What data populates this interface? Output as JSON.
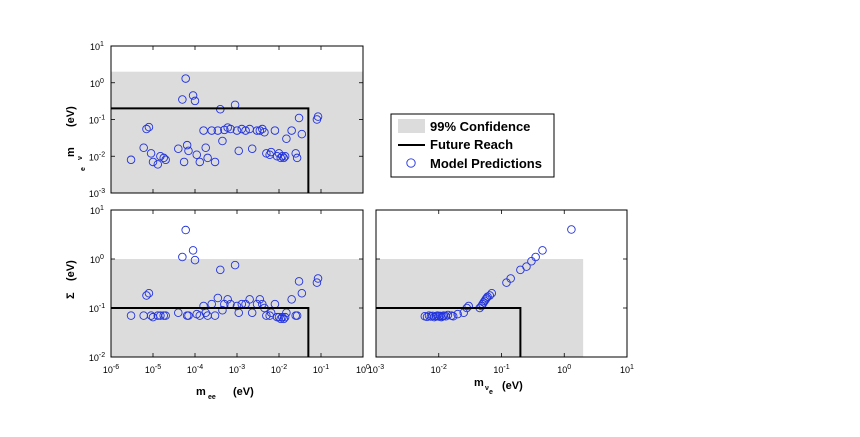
{
  "legend": {
    "confidence_label": "99% Confidence",
    "reach_label": "Future Reach",
    "model_label": "Model Predictions"
  },
  "colors": {
    "confidence": "#dcdcdc",
    "reach": "#000000",
    "model": "#2233dd"
  },
  "chart_data": [
    {
      "type": "scatter",
      "panel": "top-left",
      "xscale": "log",
      "yscale": "log",
      "xlim": [
        1e-06,
        1
      ],
      "ylim": [
        0.001,
        10
      ],
      "xlabel": "",
      "ylabel_main": "m",
      "ylabel_sub": "ν e",
      "ylabel_unit": "(eV)",
      "y_ticks": [
        "10-3",
        "10-2",
        "10-1",
        "100",
        "101"
      ],
      "x_ticks": [],
      "confidence_region": {
        "x_max": 1,
        "y_max": 2
      },
      "future_reach": {
        "x": 0.05,
        "y": 0.2
      },
      "points": [
        [
          3e-06,
          0.008
        ],
        [
          6e-06,
          0.017
        ],
        [
          7e-06,
          0.055
        ],
        [
          8e-06,
          0.062
        ],
        [
          9e-06,
          0.012
        ],
        [
          1e-05,
          0.007
        ],
        [
          1.3e-05,
          0.006
        ],
        [
          1.5e-05,
          0.01
        ],
        [
          1.8e-05,
          0.009
        ],
        [
          2e-05,
          0.008
        ],
        [
          4e-05,
          0.016
        ],
        [
          5e-05,
          0.35
        ],
        [
          5.5e-05,
          0.007
        ],
        [
          6e-05,
          1.3
        ],
        [
          6.5e-05,
          0.02
        ],
        [
          7e-05,
          0.014
        ],
        [
          9e-05,
          0.45
        ],
        [
          0.0001,
          0.32
        ],
        [
          0.00011,
          0.011
        ],
        [
          0.00013,
          0.007
        ],
        [
          0.00016,
          0.05
        ],
        [
          0.00018,
          0.017
        ],
        [
          0.0002,
          0.009
        ],
        [
          0.00025,
          0.05
        ],
        [
          0.0003,
          0.007
        ],
        [
          0.00035,
          0.05
        ],
        [
          0.0004,
          0.19
        ],
        [
          0.00045,
          0.026
        ],
        [
          0.0005,
          0.052
        ],
        [
          0.0006,
          0.06
        ],
        [
          0.0007,
          0.055
        ],
        [
          0.0009,
          0.25
        ],
        [
          0.001,
          0.05
        ],
        [
          0.0011,
          0.014
        ],
        [
          0.0013,
          0.055
        ],
        [
          0.0016,
          0.05
        ],
        [
          0.002,
          0.055
        ],
        [
          0.0023,
          0.016
        ],
        [
          0.003,
          0.05
        ],
        [
          0.0035,
          0.05
        ],
        [
          0.004,
          0.055
        ],
        [
          0.0045,
          0.045
        ],
        [
          0.005,
          0.012
        ],
        [
          0.006,
          0.011
        ],
        [
          0.0065,
          0.013
        ],
        [
          0.008,
          0.05
        ],
        [
          0.009,
          0.01
        ],
        [
          0.01,
          0.012
        ],
        [
          0.011,
          0.009
        ],
        [
          0.012,
          0.01
        ],
        [
          0.013,
          0.009
        ],
        [
          0.014,
          0.01
        ],
        [
          0.015,
          0.03
        ],
        [
          0.02,
          0.05
        ],
        [
          0.025,
          0.012
        ],
        [
          0.027,
          0.009
        ],
        [
          0.03,
          0.11
        ],
        [
          0.035,
          0.04
        ],
        [
          0.08,
          0.1
        ],
        [
          0.085,
          0.12
        ]
      ]
    },
    {
      "type": "scatter",
      "panel": "bottom-left",
      "xscale": "log",
      "yscale": "log",
      "xlim": [
        1e-06,
        1
      ],
      "ylim": [
        0.01,
        10
      ],
      "xlabel_main": "m",
      "xlabel_sub": "ee",
      "xlabel_unit": "(eV)",
      "ylabel_main": "Σ",
      "ylabel_unit": "(eV)",
      "y_ticks": [
        "10-2",
        "10-1",
        "100",
        "101"
      ],
      "x_ticks": [
        "10-6",
        "10-5",
        "10-4",
        "10-3",
        "10-2",
        "10-1",
        "100"
      ],
      "confidence_region": {
        "x_max": 1,
        "y_max": 1
      },
      "future_reach": {
        "x": 0.05,
        "y": 0.1
      },
      "points": [
        [
          3e-06,
          0.07
        ],
        [
          6e-06,
          0.07
        ],
        [
          7e-06,
          0.18
        ],
        [
          8e-06,
          0.2
        ],
        [
          9e-06,
          0.07
        ],
        [
          1e-05,
          0.065
        ],
        [
          1.3e-05,
          0.07
        ],
        [
          1.5e-05,
          0.07
        ],
        [
          1.8e-05,
          0.07
        ],
        [
          2e-05,
          0.07
        ],
        [
          4e-05,
          0.08
        ],
        [
          5e-05,
          1.1
        ],
        [
          6e-05,
          3.9
        ],
        [
          6.5e-05,
          0.07
        ],
        [
          7e-05,
          0.07
        ],
        [
          9e-05,
          1.5
        ],
        [
          0.0001,
          0.95
        ],
        [
          0.00011,
          0.075
        ],
        [
          0.00013,
          0.07
        ],
        [
          0.00016,
          0.11
        ],
        [
          0.00018,
          0.08
        ],
        [
          0.0002,
          0.07
        ],
        [
          0.00025,
          0.12
        ],
        [
          0.0003,
          0.07
        ],
        [
          0.00035,
          0.16
        ],
        [
          0.0004,
          0.6
        ],
        [
          0.00045,
          0.09
        ],
        [
          0.0005,
          0.12
        ],
        [
          0.0006,
          0.15
        ],
        [
          0.0007,
          0.12
        ],
        [
          0.0009,
          0.75
        ],
        [
          0.001,
          0.11
        ],
        [
          0.0011,
          0.08
        ],
        [
          0.0013,
          0.12
        ],
        [
          0.0016,
          0.12
        ],
        [
          0.002,
          0.15
        ],
        [
          0.0023,
          0.08
        ],
        [
          0.003,
          0.12
        ],
        [
          0.0035,
          0.15
        ],
        [
          0.004,
          0.12
        ],
        [
          0.0045,
          0.1
        ],
        [
          0.005,
          0.07
        ],
        [
          0.006,
          0.07
        ],
        [
          0.0065,
          0.08
        ],
        [
          0.008,
          0.12
        ],
        [
          0.009,
          0.065
        ],
        [
          0.01,
          0.065
        ],
        [
          0.011,
          0.06
        ],
        [
          0.012,
          0.065
        ],
        [
          0.013,
          0.06
        ],
        [
          0.014,
          0.065
        ],
        [
          0.015,
          0.08
        ],
        [
          0.02,
          0.15
        ],
        [
          0.025,
          0.07
        ],
        [
          0.027,
          0.07
        ],
        [
          0.03,
          0.35
        ],
        [
          0.035,
          0.2
        ],
        [
          0.08,
          0.33
        ],
        [
          0.085,
          0.4
        ]
      ]
    },
    {
      "type": "scatter",
      "panel": "bottom-right",
      "xscale": "log",
      "yscale": "log",
      "xlim": [
        0.001,
        10
      ],
      "ylim": [
        0.01,
        10
      ],
      "xlabel_main": "m",
      "xlabel_sub": "ν e",
      "xlabel_unit": "(eV)",
      "x_ticks": [
        "10-3",
        "10-2",
        "10-1",
        "100",
        "101"
      ],
      "y_ticks": [],
      "confidence_region": {
        "x_max": 2,
        "y_max": 1
      },
      "future_reach": {
        "x": 0.2,
        "y": 0.1
      },
      "points": [
        [
          0.006,
          0.068
        ],
        [
          0.0065,
          0.066
        ],
        [
          0.007,
          0.07
        ],
        [
          0.0075,
          0.067
        ],
        [
          0.008,
          0.069
        ],
        [
          0.0085,
          0.065
        ],
        [
          0.009,
          0.068
        ],
        [
          0.0095,
          0.07
        ],
        [
          0.01,
          0.067
        ],
        [
          0.0105,
          0.069
        ],
        [
          0.011,
          0.065
        ],
        [
          0.0115,
          0.068
        ],
        [
          0.012,
          0.07
        ],
        [
          0.013,
          0.068
        ],
        [
          0.014,
          0.072
        ],
        [
          0.016,
          0.07
        ],
        [
          0.017,
          0.068
        ],
        [
          0.02,
          0.075
        ],
        [
          0.025,
          0.08
        ],
        [
          0.028,
          0.1
        ],
        [
          0.03,
          0.11
        ],
        [
          0.045,
          0.1
        ],
        [
          0.048,
          0.11
        ],
        [
          0.05,
          0.12
        ],
        [
          0.052,
          0.13
        ],
        [
          0.054,
          0.14
        ],
        [
          0.056,
          0.15
        ],
        [
          0.058,
          0.16
        ],
        [
          0.06,
          0.17
        ],
        [
          0.065,
          0.18
        ],
        [
          0.07,
          0.2
        ],
        [
          0.12,
          0.33
        ],
        [
          0.14,
          0.4
        ],
        [
          0.2,
          0.6
        ],
        [
          0.25,
          0.7
        ],
        [
          0.3,
          0.9
        ],
        [
          0.35,
          1.1
        ],
        [
          0.45,
          1.5
        ],
        [
          1.3,
          4.0
        ]
      ]
    }
  ]
}
